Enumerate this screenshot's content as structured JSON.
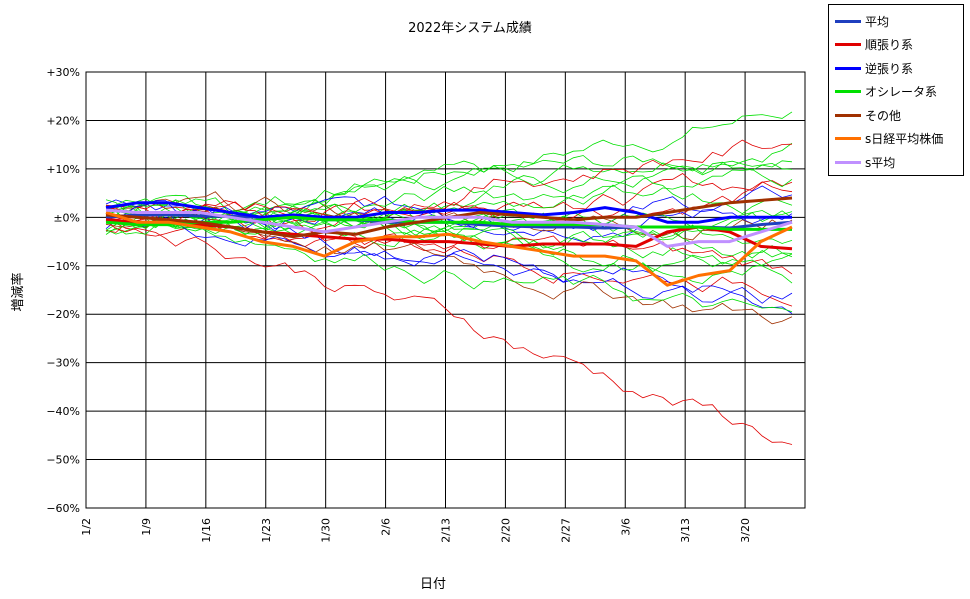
{
  "chart_data": {
    "type": "line",
    "title": "2022年システム成績",
    "xlabel": "日付",
    "ylabel": "増減率",
    "x_ticks": [
      "1/2",
      "1/9",
      "1/16",
      "1/23",
      "1/30",
      "2/6",
      "2/13",
      "2/20",
      "2/27",
      "3/6",
      "3/13",
      "3/20"
    ],
    "y_ticks": [
      "+30%",
      "+20%",
      "+10%",
      "±0%",
      "−10%",
      "−20%",
      "−30%",
      "−40%",
      "−50%",
      "−60%"
    ],
    "ylim": [
      -60,
      30
    ],
    "grid": true,
    "legend_position": "top-right outside",
    "series": [
      {
        "name": "平均",
        "color": "#1f3fbf",
        "values": [
          0,
          0.5,
          0.5,
          0.3,
          0.2,
          0,
          0,
          -0.5,
          -0.5,
          -1,
          -1,
          -1,
          -1.5,
          -1.8,
          -2,
          -2,
          -2.2,
          -2,
          -2,
          -2,
          -2.2,
          -1.5,
          -1
        ]
      },
      {
        "name": "順張り系",
        "color": "#e00000",
        "values": [
          -0.5,
          -1,
          -1,
          -1.5,
          -2,
          -3,
          -3.5,
          -4,
          -4.5,
          -4.5,
          -5,
          -5,
          -5.5,
          -6,
          -5.5,
          -5.5,
          -5.5,
          -6,
          -3,
          -2,
          -3,
          -6,
          -6.5
        ]
      },
      {
        "name": "逆張り系",
        "color": "#0000ff",
        "values": [
          2,
          3,
          3,
          2,
          1,
          0,
          0.5,
          0,
          0,
          1,
          1,
          1.5,
          1.5,
          1,
          0.5,
          1,
          2,
          1,
          -1,
          -1,
          0,
          0,
          0
        ]
      },
      {
        "name": "オシレータ系",
        "color": "#00e000",
        "values": [
          -1,
          -1.5,
          -1.5,
          -1,
          -1,
          -0.5,
          0,
          -0.5,
          -0.5,
          -0.5,
          -1,
          -1,
          -1,
          -1.5,
          -1.5,
          -1.5,
          -1.5,
          -2,
          -2,
          -2,
          -2.5,
          -2.5,
          -2.5
        ]
      },
      {
        "name": "その他",
        "color": "#a03000",
        "values": [
          0.5,
          0,
          -0.5,
          -1,
          -2,
          -3,
          -4,
          -3,
          -3.5,
          -2,
          -1,
          0,
          1,
          0.5,
          0,
          -0.5,
          0,
          0,
          1,
          2,
          3,
          3.5,
          4
        ]
      },
      {
        "name": "s日経平均株価",
        "color": "#ff7000",
        "values": [
          1,
          -1,
          -1,
          -2,
          -3,
          -5,
          -6,
          -8,
          -5,
          -4,
          -4,
          -3.5,
          -5,
          -6,
          -7,
          -8,
          -8,
          -9,
          -14,
          -12,
          -11,
          -5,
          -2
        ]
      },
      {
        "name": "s平均",
        "color": "#c090ff",
        "values": [
          1.5,
          1,
          1,
          1,
          0,
          -1,
          -2,
          -3,
          -2,
          -1,
          0,
          0,
          0,
          -1,
          -1,
          -1,
          -1.5,
          -2,
          -6,
          -5,
          -5,
          -3,
          -1
        ]
      }
    ]
  }
}
